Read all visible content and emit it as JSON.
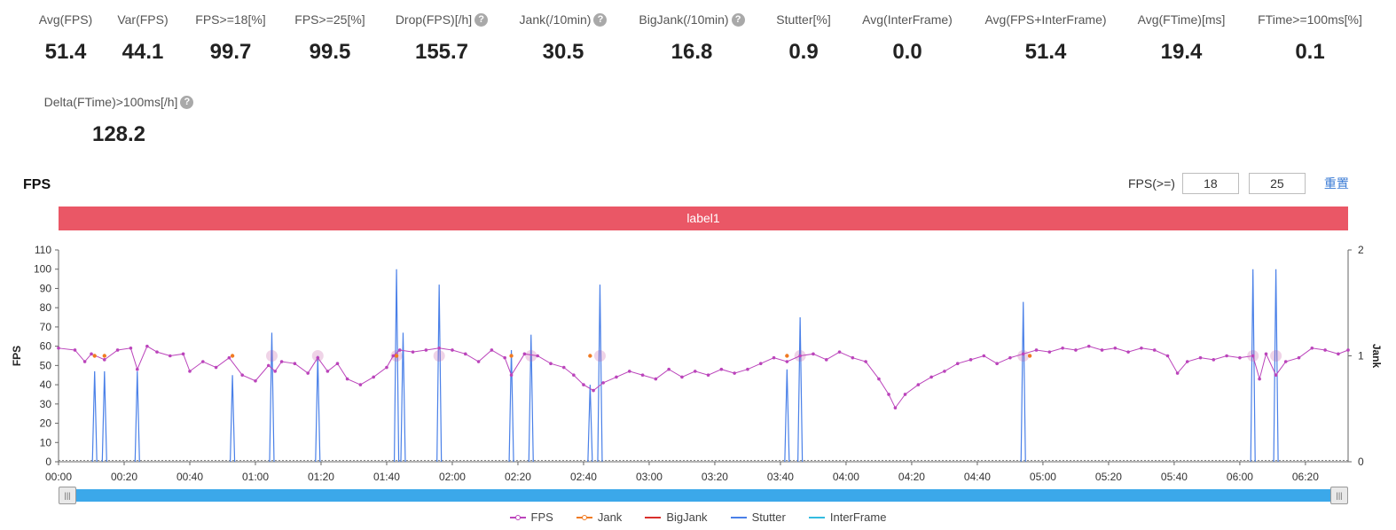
{
  "metrics": [
    {
      "label": "Avg(FPS)",
      "value": "51.4",
      "help": false
    },
    {
      "label": "Var(FPS)",
      "value": "44.1",
      "help": false
    },
    {
      "label": "FPS>=18[%]",
      "value": "99.7",
      "help": false
    },
    {
      "label": "FPS>=25[%]",
      "value": "99.5",
      "help": false
    },
    {
      "label": "Drop(FPS)[/h]",
      "value": "155.7",
      "help": true
    },
    {
      "label": "Jank(/10min)",
      "value": "30.5",
      "help": true
    },
    {
      "label": "BigJank(/10min)",
      "value": "16.8",
      "help": true
    },
    {
      "label": "Stutter[%]",
      "value": "0.9",
      "help": false
    },
    {
      "label": "Avg(InterFrame)",
      "value": "0.0",
      "help": false
    },
    {
      "label": "Avg(FPS+InterFrame)",
      "value": "51.4",
      "help": false
    },
    {
      "label": "Avg(FTime)[ms]",
      "value": "19.4",
      "help": false
    },
    {
      "label": "FTime>=100ms[%]",
      "value": "0.1",
      "help": false
    },
    {
      "label": "Delta(FTime)>100ms[/h]",
      "value": "128.2",
      "help": true
    }
  ],
  "chart_title": "FPS",
  "filter": {
    "label": "FPS(>=)",
    "value1": "18",
    "value2": "25",
    "reset_label": "重置"
  },
  "label_bar": "label1",
  "help_glyph": "?",
  "colors": {
    "fps": "#bb44bb",
    "jank": "#f07a22",
    "bigjank": "#d9302c",
    "stutter": "#4a80e8",
    "interframe": "#33bbe0",
    "label_bar": "#ea5766",
    "slider": "#3ba8ea"
  },
  "chart_data": {
    "type": "line",
    "ylabel": "FPS",
    "y2label": "Jank",
    "ylim": [
      0,
      110
    ],
    "y2lim": [
      0,
      2
    ],
    "y_ticks": [
      "0",
      "10",
      "20",
      "30",
      "40",
      "50",
      "60",
      "70",
      "80",
      "90",
      "100",
      "110"
    ],
    "y2_ticks": [
      "0",
      "1",
      "2"
    ],
    "x_ticks": [
      "00:00",
      "00:20",
      "00:40",
      "01:00",
      "01:20",
      "01:40",
      "02:00",
      "02:20",
      "02:40",
      "03:00",
      "03:20",
      "03:40",
      "04:00",
      "04:20",
      "04:40",
      "05:00",
      "05:20",
      "05:40",
      "06:00",
      "06:20"
    ],
    "x_range_seconds": [
      0,
      393
    ],
    "legend": [
      "FPS",
      "Jank",
      "BigJank",
      "Stutter",
      "InterFrame"
    ],
    "fps_series": [
      {
        "t": 0,
        "v": 59
      },
      {
        "t": 5,
        "v": 58
      },
      {
        "t": 8,
        "v": 52
      },
      {
        "t": 10,
        "v": 56
      },
      {
        "t": 14,
        "v": 53
      },
      {
        "t": 18,
        "v": 58
      },
      {
        "t": 22,
        "v": 59
      },
      {
        "t": 24,
        "v": 48
      },
      {
        "t": 27,
        "v": 60
      },
      {
        "t": 30,
        "v": 57
      },
      {
        "t": 34,
        "v": 55
      },
      {
        "t": 38,
        "v": 56
      },
      {
        "t": 40,
        "v": 47
      },
      {
        "t": 44,
        "v": 52
      },
      {
        "t": 48,
        "v": 49
      },
      {
        "t": 52,
        "v": 54
      },
      {
        "t": 56,
        "v": 45
      },
      {
        "t": 60,
        "v": 42
      },
      {
        "t": 64,
        "v": 50
      },
      {
        "t": 66,
        "v": 47
      },
      {
        "t": 68,
        "v": 52
      },
      {
        "t": 72,
        "v": 51
      },
      {
        "t": 76,
        "v": 46
      },
      {
        "t": 79,
        "v": 54
      },
      {
        "t": 82,
        "v": 47
      },
      {
        "t": 85,
        "v": 51
      },
      {
        "t": 88,
        "v": 43
      },
      {
        "t": 92,
        "v": 40
      },
      {
        "t": 96,
        "v": 44
      },
      {
        "t": 100,
        "v": 49
      },
      {
        "t": 102,
        "v": 55
      },
      {
        "t": 104,
        "v": 58
      },
      {
        "t": 108,
        "v": 57
      },
      {
        "t": 112,
        "v": 58
      },
      {
        "t": 116,
        "v": 59
      },
      {
        "t": 120,
        "v": 58
      },
      {
        "t": 124,
        "v": 56
      },
      {
        "t": 128,
        "v": 52
      },
      {
        "t": 132,
        "v": 58
      },
      {
        "t": 136,
        "v": 54
      },
      {
        "t": 138,
        "v": 45
      },
      {
        "t": 142,
        "v": 56
      },
      {
        "t": 146,
        "v": 55
      },
      {
        "t": 150,
        "v": 51
      },
      {
        "t": 154,
        "v": 49
      },
      {
        "t": 157,
        "v": 45
      },
      {
        "t": 160,
        "v": 40
      },
      {
        "t": 163,
        "v": 37
      },
      {
        "t": 166,
        "v": 41
      },
      {
        "t": 170,
        "v": 44
      },
      {
        "t": 174,
        "v": 47
      },
      {
        "t": 178,
        "v": 45
      },
      {
        "t": 182,
        "v": 43
      },
      {
        "t": 186,
        "v": 48
      },
      {
        "t": 190,
        "v": 44
      },
      {
        "t": 194,
        "v": 47
      },
      {
        "t": 198,
        "v": 45
      },
      {
        "t": 202,
        "v": 48
      },
      {
        "t": 206,
        "v": 46
      },
      {
        "t": 210,
        "v": 48
      },
      {
        "t": 214,
        "v": 51
      },
      {
        "t": 218,
        "v": 54
      },
      {
        "t": 222,
        "v": 52
      },
      {
        "t": 226,
        "v": 55
      },
      {
        "t": 230,
        "v": 56
      },
      {
        "t": 234,
        "v": 53
      },
      {
        "t": 238,
        "v": 57
      },
      {
        "t": 242,
        "v": 54
      },
      {
        "t": 246,
        "v": 52
      },
      {
        "t": 250,
        "v": 43
      },
      {
        "t": 253,
        "v": 35
      },
      {
        "t": 255,
        "v": 28
      },
      {
        "t": 258,
        "v": 35
      },
      {
        "t": 262,
        "v": 40
      },
      {
        "t": 266,
        "v": 44
      },
      {
        "t": 270,
        "v": 47
      },
      {
        "t": 274,
        "v": 51
      },
      {
        "t": 278,
        "v": 53
      },
      {
        "t": 282,
        "v": 55
      },
      {
        "t": 286,
        "v": 51
      },
      {
        "t": 290,
        "v": 54
      },
      {
        "t": 294,
        "v": 56
      },
      {
        "t": 298,
        "v": 58
      },
      {
        "t": 302,
        "v": 57
      },
      {
        "t": 306,
        "v": 59
      },
      {
        "t": 310,
        "v": 58
      },
      {
        "t": 314,
        "v": 60
      },
      {
        "t": 318,
        "v": 58
      },
      {
        "t": 322,
        "v": 59
      },
      {
        "t": 326,
        "v": 57
      },
      {
        "t": 330,
        "v": 59
      },
      {
        "t": 334,
        "v": 58
      },
      {
        "t": 338,
        "v": 55
      },
      {
        "t": 341,
        "v": 46
      },
      {
        "t": 344,
        "v": 52
      },
      {
        "t": 348,
        "v": 54
      },
      {
        "t": 352,
        "v": 53
      },
      {
        "t": 356,
        "v": 55
      },
      {
        "t": 360,
        "v": 54
      },
      {
        "t": 364,
        "v": 55
      },
      {
        "t": 366,
        "v": 43
      },
      {
        "t": 368,
        "v": 56
      },
      {
        "t": 371,
        "v": 45
      },
      {
        "t": 374,
        "v": 52
      },
      {
        "t": 378,
        "v": 54
      },
      {
        "t": 382,
        "v": 59
      },
      {
        "t": 386,
        "v": 58
      },
      {
        "t": 390,
        "v": 56
      },
      {
        "t": 393,
        "v": 58
      }
    ],
    "stutter_spikes": [
      {
        "t": 11,
        "v": 47
      },
      {
        "t": 14,
        "v": 47
      },
      {
        "t": 24,
        "v": 47
      },
      {
        "t": 53,
        "v": 45
      },
      {
        "t": 65,
        "v": 67
      },
      {
        "t": 79,
        "v": 55
      },
      {
        "t": 103,
        "v": 100
      },
      {
        "t": 105,
        "v": 67
      },
      {
        "t": 116,
        "v": 92
      },
      {
        "t": 138,
        "v": 58
      },
      {
        "t": 144,
        "v": 66
      },
      {
        "t": 162,
        "v": 40
      },
      {
        "t": 165,
        "v": 92
      },
      {
        "t": 222,
        "v": 48
      },
      {
        "t": 226,
        "v": 75
      },
      {
        "t": 294,
        "v": 83
      },
      {
        "t": 364,
        "v": 100
      },
      {
        "t": 371,
        "v": 100
      }
    ],
    "jank_points": [
      {
        "t": 11,
        "v": 55
      },
      {
        "t": 14,
        "v": 55
      },
      {
        "t": 53,
        "v": 55
      },
      {
        "t": 103,
        "v": 55
      },
      {
        "t": 138,
        "v": 55
      },
      {
        "t": 162,
        "v": 55
      },
      {
        "t": 222,
        "v": 55
      },
      {
        "t": 296,
        "v": 55
      }
    ],
    "bigjank_points": [
      {
        "t": 65,
        "v": 55
      },
      {
        "t": 79,
        "v": 55
      },
      {
        "t": 103,
        "v": 55
      },
      {
        "t": 116,
        "v": 55
      },
      {
        "t": 144,
        "v": 55
      },
      {
        "t": 165,
        "v": 55
      },
      {
        "t": 226,
        "v": 55
      },
      {
        "t": 294,
        "v": 55
      },
      {
        "t": 364,
        "v": 55
      },
      {
        "t": 371,
        "v": 55
      }
    ]
  }
}
